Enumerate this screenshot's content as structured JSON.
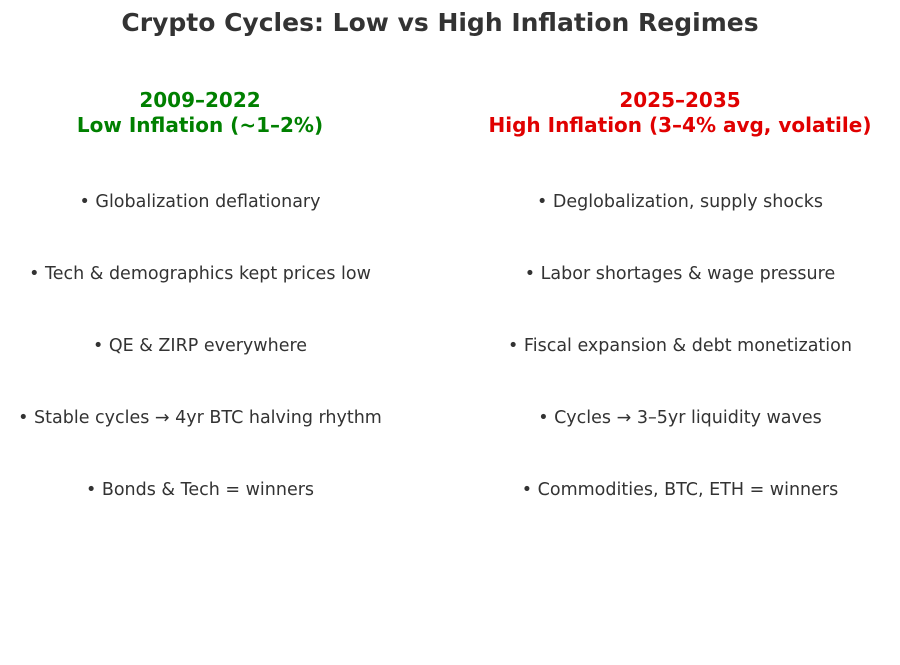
{
  "title": "Crypto Cycles: Low vs High Inflation Regimes",
  "colors": {
    "text": "#333333",
    "low_inflation": "#008000",
    "high_inflation": "#e00000"
  },
  "columns": [
    {
      "years": "2009–2022",
      "regime": "Low Inflation (~1–2%)",
      "color": "#008000",
      "bullets": [
        "• Globalization deflationary",
        "• Tech & demographics kept prices low",
        "• QE & ZIRP everywhere",
        "• Stable cycles → 4yr BTC halving rhythm",
        "• Bonds & Tech = winners"
      ]
    },
    {
      "years": "2025–2035",
      "regime": "High Inflation (3–4% avg, volatile)",
      "color": "#e00000",
      "bullets": [
        "• Deglobalization, supply shocks",
        "• Labor shortages & wage pressure",
        "• Fiscal expansion & debt monetization",
        "• Cycles → 3–5yr liquidity waves",
        "• Commodities, BTC, ETH = winners"
      ]
    }
  ]
}
